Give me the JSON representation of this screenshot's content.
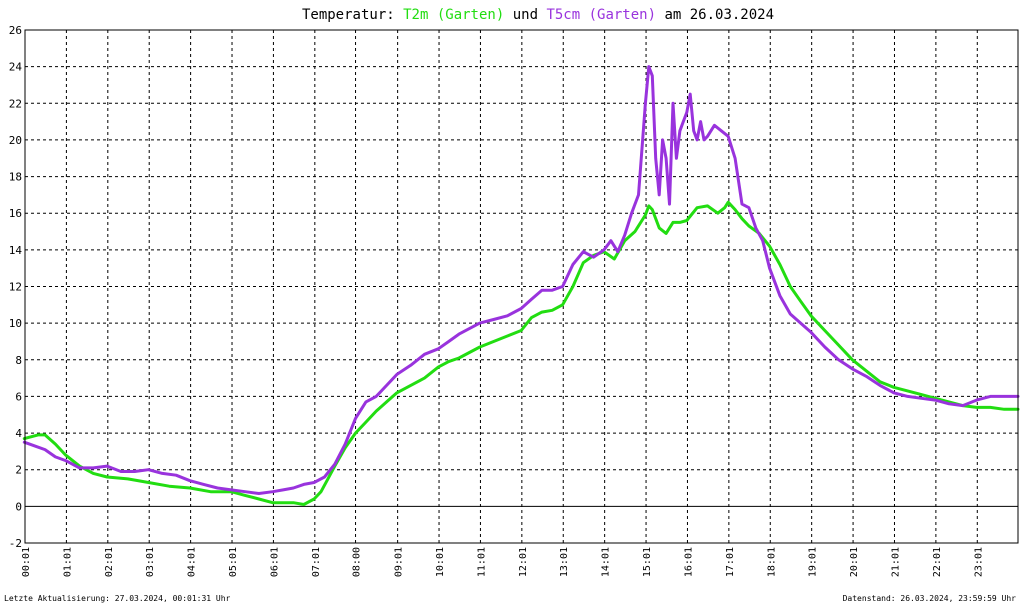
{
  "chart_data": {
    "type": "line",
    "title": {
      "prefix": "Temperatur: ",
      "series1": "T2m (Garten)",
      "joiner": " und ",
      "series2": "T5cm (Garten)",
      "suffix": " am 26.03.2024"
    },
    "xlabel": "",
    "ylabel": "",
    "x_ticks": [
      "00:01",
      "01:01",
      "02:01",
      "03:01",
      "04:01",
      "05:01",
      "06:01",
      "07:01",
      "08:00",
      "09:01",
      "10:01",
      "11:01",
      "12:01",
      "13:01",
      "14:01",
      "15:01",
      "16:01",
      "17:01",
      "18:01",
      "19:01",
      "20:01",
      "21:01",
      "22:01",
      "23:01"
    ],
    "y_ticks": [
      -2,
      0,
      2,
      4,
      6,
      8,
      10,
      12,
      14,
      16,
      18,
      20,
      22,
      24,
      26
    ],
    "xlim": [
      "00:01",
      "24:00"
    ],
    "ylim": [
      -2,
      26
    ],
    "grid": true,
    "series": [
      {
        "name": "T2m (Garten)",
        "color": "#22dd11",
        "x": [
          "00:00",
          "00:20",
          "00:30",
          "00:45",
          "01:00",
          "01:20",
          "01:40",
          "02:00",
          "02:30",
          "03:00",
          "03:30",
          "04:00",
          "04:30",
          "05:00",
          "05:20",
          "05:40",
          "06:00",
          "06:15",
          "06:30",
          "06:45",
          "07:00",
          "07:10",
          "07:20",
          "07:30",
          "07:45",
          "08:00",
          "08:15",
          "08:30",
          "08:45",
          "09:00",
          "09:20",
          "09:40",
          "10:00",
          "10:15",
          "10:30",
          "10:45",
          "11:00",
          "11:20",
          "11:40",
          "12:00",
          "12:15",
          "12:30",
          "12:45",
          "13:00",
          "13:15",
          "13:30",
          "13:45",
          "14:00",
          "14:15",
          "14:30",
          "14:45",
          "15:00",
          "15:05",
          "15:10",
          "15:20",
          "15:30",
          "15:40",
          "15:50",
          "16:00",
          "16:15",
          "16:30",
          "16:45",
          "16:55",
          "17:00",
          "17:10",
          "17:20",
          "17:30",
          "17:45",
          "18:00",
          "18:15",
          "18:30",
          "18:45",
          "19:00",
          "19:20",
          "19:40",
          "20:00",
          "20:20",
          "20:40",
          "21:00",
          "21:20",
          "21:40",
          "22:00",
          "22:20",
          "22:40",
          "23:00",
          "23:20",
          "23:40",
          "24:00"
        ],
        "values": [
          3.7,
          3.9,
          3.9,
          3.4,
          2.8,
          2.2,
          1.8,
          1.6,
          1.5,
          1.3,
          1.1,
          1.0,
          0.8,
          0.8,
          0.6,
          0.4,
          0.2,
          0.2,
          0.2,
          0.1,
          0.4,
          0.8,
          1.5,
          2.2,
          3.2,
          4.0,
          4.6,
          5.2,
          5.7,
          6.2,
          6.6,
          7.0,
          7.6,
          7.9,
          8.1,
          8.4,
          8.7,
          9.0,
          9.3,
          9.6,
          10.3,
          10.6,
          10.7,
          11.0,
          12.0,
          13.3,
          13.7,
          13.9,
          13.5,
          14.5,
          15.0,
          15.9,
          16.4,
          16.2,
          15.2,
          14.9,
          15.5,
          15.5,
          15.6,
          16.3,
          16.4,
          16.0,
          16.3,
          16.6,
          16.2,
          15.7,
          15.3,
          14.9,
          14.2,
          13.2,
          12.0,
          11.2,
          10.4,
          9.6,
          8.8,
          8.0,
          7.4,
          6.8,
          6.5,
          6.3,
          6.1,
          5.9,
          5.7,
          5.5,
          5.4,
          5.4,
          5.3,
          5.3
        ]
      },
      {
        "name": "T5cm (Garten)",
        "color": "#9933dd",
        "x": [
          "00:00",
          "00:15",
          "00:30",
          "00:45",
          "01:00",
          "01:20",
          "01:40",
          "02:00",
          "02:20",
          "02:40",
          "03:00",
          "03:20",
          "03:40",
          "04:00",
          "04:20",
          "04:40",
          "05:00",
          "05:20",
          "05:40",
          "06:00",
          "06:15",
          "06:30",
          "06:45",
          "07:00",
          "07:15",
          "07:30",
          "07:45",
          "08:00",
          "08:15",
          "08:30",
          "08:45",
          "09:00",
          "09:20",
          "09:40",
          "10:00",
          "10:15",
          "10:30",
          "10:45",
          "11:00",
          "11:20",
          "11:40",
          "12:00",
          "12:15",
          "12:30",
          "12:45",
          "13:00",
          "13:15",
          "13:30",
          "13:45",
          "14:00",
          "14:10",
          "14:20",
          "14:30",
          "14:40",
          "14:50",
          "15:00",
          "15:05",
          "15:10",
          "15:15",
          "15:20",
          "15:25",
          "15:30",
          "15:35",
          "15:40",
          "15:45",
          "15:50",
          "15:55",
          "16:00",
          "16:05",
          "16:10",
          "16:15",
          "16:20",
          "16:25",
          "16:30",
          "16:40",
          "16:50",
          "17:00",
          "17:10",
          "17:20",
          "17:30",
          "17:40",
          "17:50",
          "18:00",
          "18:15",
          "18:30",
          "18:45",
          "19:00",
          "19:20",
          "19:40",
          "20:00",
          "20:20",
          "20:40",
          "21:00",
          "21:20",
          "21:40",
          "22:00",
          "22:20",
          "22:40",
          "23:00",
          "23:20",
          "23:40",
          "24:00"
        ],
        "values": [
          3.5,
          3.3,
          3.1,
          2.7,
          2.5,
          2.1,
          2.1,
          2.2,
          1.9,
          1.9,
          2.0,
          1.8,
          1.7,
          1.4,
          1.2,
          1.0,
          0.9,
          0.8,
          0.7,
          0.8,
          0.9,
          1.0,
          1.2,
          1.3,
          1.6,
          2.3,
          3.4,
          4.8,
          5.7,
          6.0,
          6.6,
          7.2,
          7.7,
          8.3,
          8.6,
          9.0,
          9.4,
          9.7,
          10.0,
          10.2,
          10.4,
          10.8,
          11.3,
          11.8,
          11.8,
          12.0,
          13.2,
          13.9,
          13.6,
          14.0,
          14.5,
          13.9,
          14.8,
          16.0,
          17.0,
          22.0,
          24.0,
          23.5,
          19.0,
          17.0,
          20.0,
          19.0,
          16.5,
          22.0,
          19.0,
          20.5,
          21.0,
          21.5,
          22.5,
          20.5,
          20.0,
          21.0,
          20.0,
          20.2,
          20.8,
          20.5,
          20.2,
          19.0,
          16.5,
          16.3,
          15.2,
          14.5,
          13.0,
          11.5,
          10.5,
          10.0,
          9.5,
          8.7,
          8.0,
          7.5,
          7.1,
          6.6,
          6.2,
          6.0,
          5.9,
          5.8,
          5.6,
          5.5,
          5.8,
          6.0,
          6.0,
          6.0
        ]
      }
    ]
  },
  "footer": {
    "left": "Letzte Aktualisierung: 27.03.2024, 00:01:31 Uhr",
    "right": "Datenstand: 26.03.2024, 23:59:59 Uhr"
  }
}
